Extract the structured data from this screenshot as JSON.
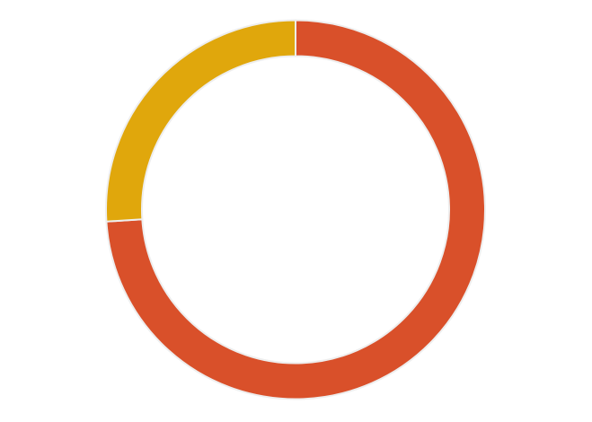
{
  "chart_data": {
    "type": "pie",
    "variant": "donut",
    "title": "",
    "slices": [
      {
        "value": 74,
        "color": "#d9502a"
      },
      {
        "value": 26,
        "color": "#e0a70c"
      }
    ],
    "start_angle": "12 o'clock",
    "direction": "clockwise",
    "legend": "none",
    "slice_border_color": "#eeeeee"
  }
}
